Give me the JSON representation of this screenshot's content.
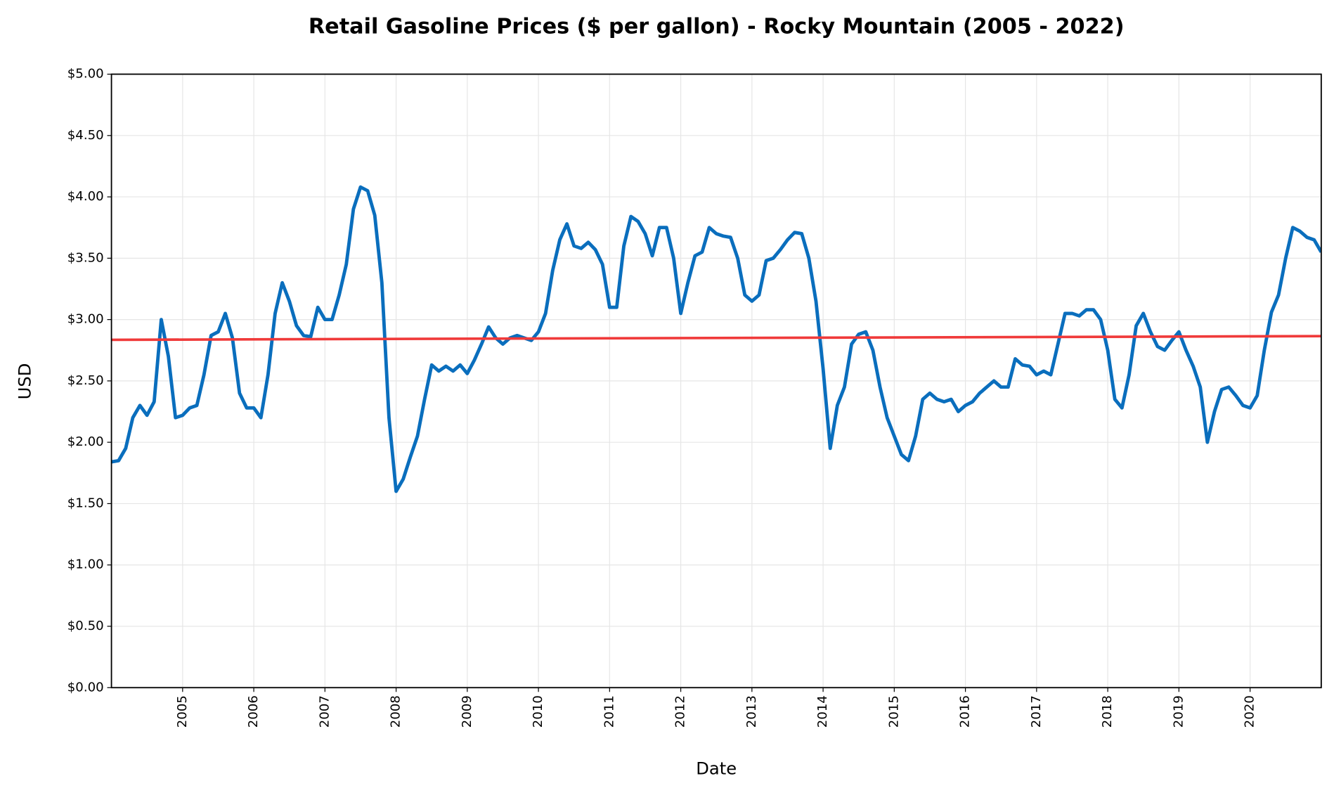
{
  "chart_data": {
    "type": "line",
    "title": "Retail Gasoline Prices ($ per gallon) - Rocky Mountain (2005 - 2022)",
    "x_label": "Date",
    "y_label": "USD",
    "xlim": [
      2004,
      2021
    ],
    "ylim": [
      0,
      5
    ],
    "xticks": [
      2005,
      2006,
      2007,
      2008,
      2009,
      2010,
      2011,
      2012,
      2013,
      2014,
      2015,
      2016,
      2017,
      2018,
      2019,
      2020
    ],
    "yticks": [
      {
        "value": 0,
        "label": "$0.00"
      },
      {
        "value": 0.5,
        "label": "$0.50"
      },
      {
        "value": 1,
        "label": "$1.00"
      },
      {
        "value": 1.5,
        "label": "$1.50"
      },
      {
        "value": 2,
        "label": "$2.00"
      },
      {
        "value": 2.5,
        "label": "$2.50"
      },
      {
        "value": 3,
        "label": "$3.00"
      },
      {
        "value": 3.5,
        "label": "$3.50"
      },
      {
        "value": 4,
        "label": "$4.00"
      },
      {
        "value": 4.5,
        "label": "$4.50"
      },
      {
        "value": 5,
        "label": "$5.00"
      }
    ],
    "grid": true,
    "series": [
      {
        "color": "#0a6ebd",
        "x": [
          2004.0,
          2004.1,
          2004.2,
          2004.3,
          2004.4,
          2004.5,
          2004.6,
          2004.7,
          2004.8,
          2004.9,
          2005.0,
          2005.1,
          2005.2,
          2005.3,
          2005.4,
          2005.5,
          2005.6,
          2005.7,
          2005.8,
          2005.9,
          2006.0,
          2006.1,
          2006.2,
          2006.3,
          2006.4,
          2006.5,
          2006.6,
          2006.7,
          2006.8,
          2006.9,
          2007.0,
          2007.1,
          2007.2,
          2007.3,
          2007.4,
          2007.5,
          2007.6,
          2007.7,
          2007.8,
          2007.9,
          2008.0,
          2008.1,
          2008.2,
          2008.3,
          2008.4,
          2008.5,
          2008.6,
          2008.7,
          2008.8,
          2008.9,
          2009.0,
          2009.1,
          2009.2,
          2009.3,
          2009.4,
          2009.5,
          2009.6,
          2009.7,
          2009.8,
          2009.9,
          2010.0,
          2010.1,
          2010.2,
          2010.3,
          2010.4,
          2010.5,
          2010.6,
          2010.7,
          2010.8,
          2010.9,
          2011.0,
          2011.1,
          2011.2,
          2011.3,
          2011.4,
          2011.5,
          2011.6,
          2011.7,
          2011.8,
          2011.9,
          2012.0,
          2012.1,
          2012.2,
          2012.3,
          2012.4,
          2012.5,
          2012.6,
          2012.7,
          2012.8,
          2012.9,
          2013.0,
          2013.1,
          2013.2,
          2013.3,
          2013.4,
          2013.5,
          2013.6,
          2013.7,
          2013.8,
          2013.9,
          2014.0,
          2014.1,
          2014.2,
          2014.3,
          2014.4,
          2014.5,
          2014.6,
          2014.7,
          2014.8,
          2014.9,
          2015.0,
          2015.1,
          2015.2,
          2015.3,
          2015.4,
          2015.5,
          2015.6,
          2015.7,
          2015.8,
          2015.9,
          2016.0,
          2016.1,
          2016.2,
          2016.3,
          2016.4,
          2016.5,
          2016.6,
          2016.7,
          2016.8,
          2016.9,
          2017.0,
          2017.1,
          2017.2,
          2017.3,
          2017.4,
          2017.5,
          2017.6,
          2017.7,
          2017.8,
          2017.9,
          2018.0,
          2018.1,
          2018.2,
          2018.3,
          2018.4,
          2018.5,
          2018.6,
          2018.7,
          2018.8,
          2018.9,
          2019.0,
          2019.1,
          2019.2,
          2019.3,
          2019.4,
          2019.5,
          2019.6,
          2019.7,
          2019.8,
          2019.9,
          2020.0,
          2020.1,
          2020.2,
          2020.3,
          2020.4,
          2020.5,
          2020.6,
          2020.7,
          2020.8,
          2020.9,
          2021.0
        ],
        "values": [
          1.84,
          1.85,
          1.95,
          2.2,
          2.3,
          2.22,
          2.33,
          3.0,
          2.7,
          2.2,
          2.22,
          2.28,
          2.3,
          2.55,
          2.87,
          2.9,
          3.05,
          2.85,
          2.4,
          2.28,
          2.28,
          2.2,
          2.55,
          3.05,
          3.3,
          3.15,
          2.95,
          2.87,
          2.86,
          3.1,
          3.0,
          3.0,
          3.2,
          3.45,
          3.9,
          4.08,
          4.05,
          3.85,
          3.3,
          2.2,
          1.6,
          1.7,
          1.88,
          2.05,
          2.35,
          2.63,
          2.58,
          2.62,
          2.58,
          2.63,
          2.56,
          2.67,
          2.8,
          2.94,
          2.85,
          2.8,
          2.85,
          2.87,
          2.85,
          2.83,
          2.9,
          3.05,
          3.4,
          3.65,
          3.78,
          3.6,
          3.58,
          3.63,
          3.57,
          3.45,
          3.1,
          3.1,
          3.6,
          3.84,
          3.8,
          3.7,
          3.52,
          3.75,
          3.75,
          3.5,
          3.05,
          3.3,
          3.52,
          3.55,
          3.75,
          3.7,
          3.68,
          3.67,
          3.5,
          3.2,
          3.15,
          3.2,
          3.48,
          3.5,
          3.57,
          3.65,
          3.71,
          3.7,
          3.5,
          3.15,
          2.6,
          1.95,
          2.3,
          2.45,
          2.8,
          2.88,
          2.9,
          2.75,
          2.45,
          2.2,
          2.05,
          1.9,
          1.85,
          2.05,
          2.35,
          2.4,
          2.35,
          2.33,
          2.35,
          2.25,
          2.3,
          2.33,
          2.4,
          2.45,
          2.5,
          2.45,
          2.45,
          2.68,
          2.63,
          2.62,
          2.55,
          2.58,
          2.55,
          2.8,
          3.05,
          3.05,
          3.03,
          3.08,
          3.08,
          3.0,
          2.75,
          2.35,
          2.28,
          2.55,
          2.95,
          3.05,
          2.9,
          2.78,
          2.75,
          2.83,
          2.9,
          2.75,
          2.62,
          2.45,
          2.0,
          2.25,
          2.43,
          2.45,
          2.38,
          2.3,
          2.28,
          2.38,
          2.75,
          3.06,
          3.2,
          3.5,
          3.75,
          3.72,
          3.67,
          3.65,
          3.55
        ]
      },
      {
        "color": "#f03a3a",
        "x": [
          2004,
          2021
        ],
        "values": [
          2.835,
          2.865
        ]
      }
    ]
  }
}
